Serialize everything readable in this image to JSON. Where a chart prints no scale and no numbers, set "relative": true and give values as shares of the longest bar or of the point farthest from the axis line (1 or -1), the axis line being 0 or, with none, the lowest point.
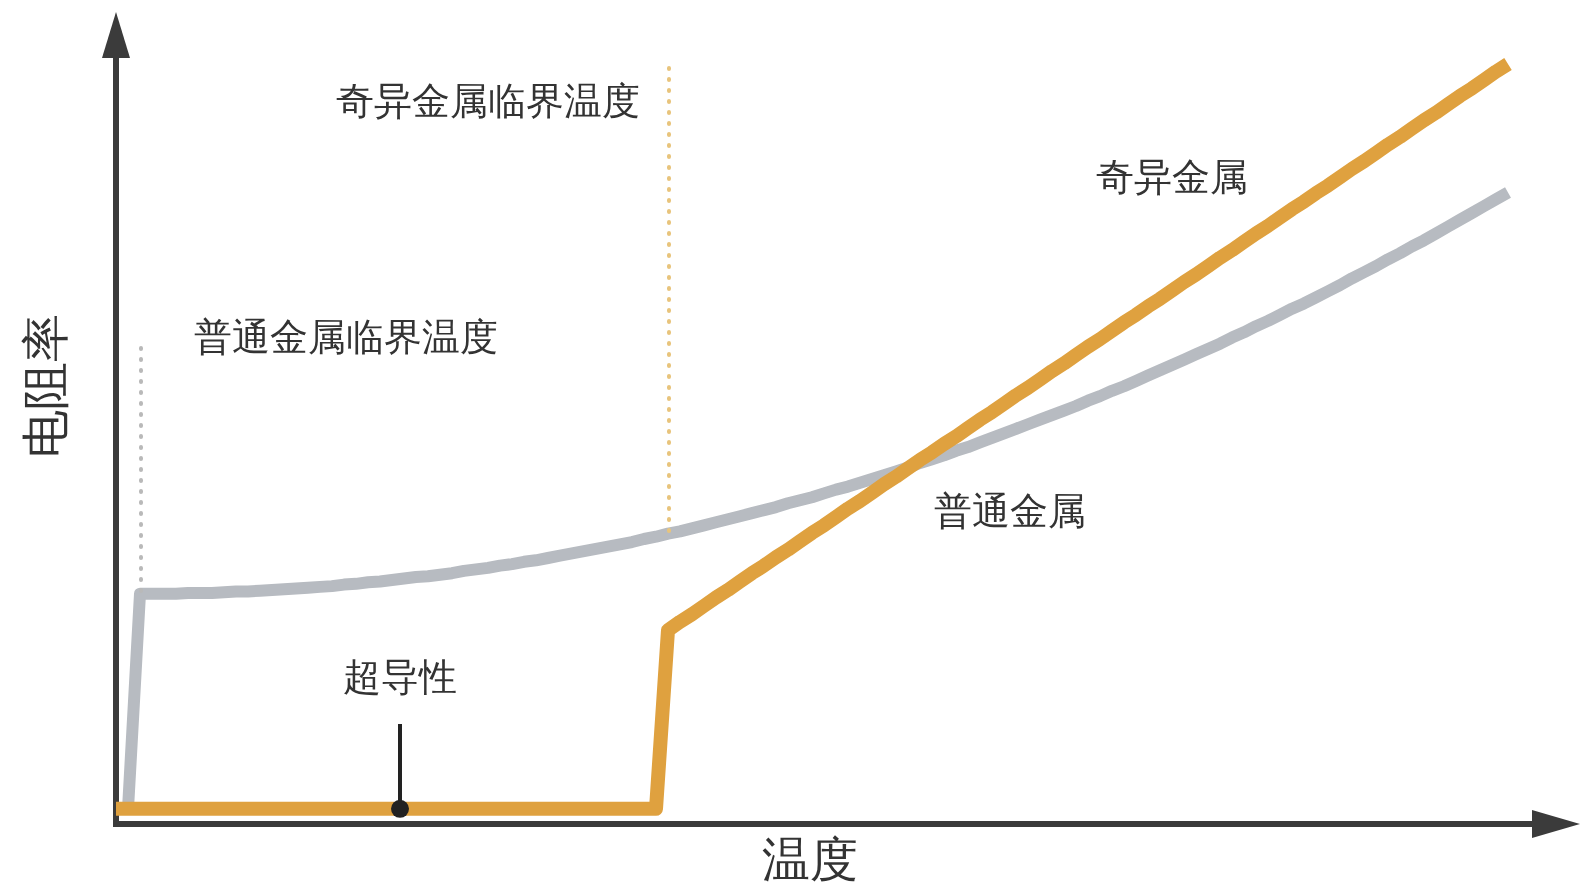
{
  "chart_data": {
    "type": "line",
    "relative": true,
    "xlabel": "温度",
    "ylabel": "电阻率",
    "marker": "none",
    "categories": [
      null,
      null,
      null,
      null,
      null,
      null,
      null,
      null,
      null,
      null,
      null,
      null,
      null,
      null,
      null,
      null,
      null,
      null,
      null,
      null,
      null,
      null,
      null,
      null,
      null,
      null,
      null,
      null,
      null,
      null,
      null,
      null,
      null,
      null,
      null,
      null,
      null,
      null,
      null,
      null,
      null,
      null,
      null,
      null,
      null,
      null,
      null,
      null,
      null,
      null,
      null,
      null,
      null,
      null,
      null,
      null,
      null,
      null,
      null,
      null,
      null,
      null,
      null,
      null,
      null,
      null,
      null,
      null,
      null,
      null,
      null,
      null,
      null,
      null,
      null,
      null,
      null,
      null,
      null,
      null,
      null,
      null,
      null,
      null,
      null,
      null,
      null,
      null,
      null,
      null,
      null,
      null,
      null,
      null,
      null,
      null,
      null,
      null,
      null,
      null,
      null,
      null,
      null,
      null,
      null,
      null,
      null,
      null,
      null,
      null,
      null,
      null,
      null,
      null,
      null,
      null,
      null,
      null,
      null
    ],
    "series": [
      {
        "name": "奇异金属",
        "color": "#dfa13f",
        "values": [
          0.02,
          0.02,
          0.02,
          0.02,
          0.02,
          0.02,
          0.02,
          0.02,
          0.02,
          0.02,
          0.02,
          0.02,
          0.02,
          0.02,
          0.02,
          0.02,
          0.02,
          0.02,
          0.02,
          0.02,
          0.02,
          0.02,
          0.02,
          0.02,
          0.02,
          0.02,
          0.02,
          0.02,
          0.02,
          0.02,
          0.02,
          0.02,
          0.02,
          0.02,
          0.02,
          0.02,
          0.02,
          0.02,
          0.02,
          0.02,
          0.02,
          0.02,
          0.02,
          0.02,
          0.02,
          0.02,
          0.255,
          0.266,
          0.276,
          0.287,
          0.298,
          0.308,
          0.319,
          0.33,
          0.34,
          0.351,
          0.361,
          0.372,
          0.383,
          0.393,
          0.404,
          0.415,
          0.425,
          0.436,
          0.447,
          0.457,
          0.468,
          0.479,
          0.489,
          0.5,
          0.51,
          0.521,
          0.532,
          0.542,
          0.553,
          0.564,
          0.574,
          0.585,
          0.596,
          0.606,
          0.617,
          0.628,
          0.638,
          0.649,
          0.66,
          0.67,
          0.681,
          0.691,
          0.702,
          0.713,
          0.723,
          0.734,
          0.745,
          0.755,
          0.766,
          0.777,
          0.787,
          0.798,
          0.809,
          0.819,
          0.83,
          0.84,
          0.851,
          0.862,
          0.872,
          0.883,
          0.894,
          0.904,
          0.915,
          0.926,
          0.936,
          0.947,
          0.958,
          0.968,
          0.979,
          0.99,
          1,
          null,
          null
        ]
      },
      {
        "name": "普通金属",
        "color": "#b7bbc1",
        "values": [
          null,
          0.02,
          0.303,
          0.303,
          0.303,
          0.303,
          0.304,
          0.304,
          0.304,
          0.305,
          0.306,
          0.306,
          0.307,
          0.308,
          0.309,
          0.31,
          0.311,
          0.312,
          0.313,
          0.315,
          0.316,
          0.318,
          0.319,
          0.321,
          0.323,
          0.325,
          0.326,
          0.328,
          0.33,
          0.333,
          0.335,
          0.337,
          0.34,
          0.342,
          0.345,
          0.347,
          0.35,
          0.353,
          0.356,
          0.359,
          0.362,
          0.365,
          0.368,
          0.371,
          0.375,
          0.378,
          0.382,
          0.385,
          0.389,
          0.393,
          0.397,
          0.401,
          0.405,
          0.409,
          0.413,
          0.417,
          0.422,
          0.426,
          0.43,
          0.435,
          0.44,
          0.444,
          0.449,
          0.454,
          0.459,
          0.464,
          0.469,
          0.475,
          0.48,
          0.485,
          0.491,
          0.496,
          0.502,
          0.508,
          0.514,
          0.52,
          0.526,
          0.532,
          0.538,
          0.544,
          0.55,
          0.557,
          0.563,
          0.57,
          0.576,
          0.583,
          0.59,
          0.597,
          0.604,
          0.611,
          0.618,
          0.625,
          0.632,
          0.64,
          0.647,
          0.655,
          0.662,
          0.67,
          0.678,
          0.685,
          0.693,
          0.701,
          0.709,
          0.718,
          0.726,
          0.734,
          0.743,
          0.751,
          0.76,
          0.768,
          0.777,
          0.786,
          0.795,
          0.804,
          0.813,
          0.822,
          0.831,
          null,
          null
        ]
      }
    ],
    "annotations": [
      "普通金属临界温度",
      "奇异金属临界温度",
      {
        "text": "超导性",
        "y": 0.02
      }
    ]
  }
}
